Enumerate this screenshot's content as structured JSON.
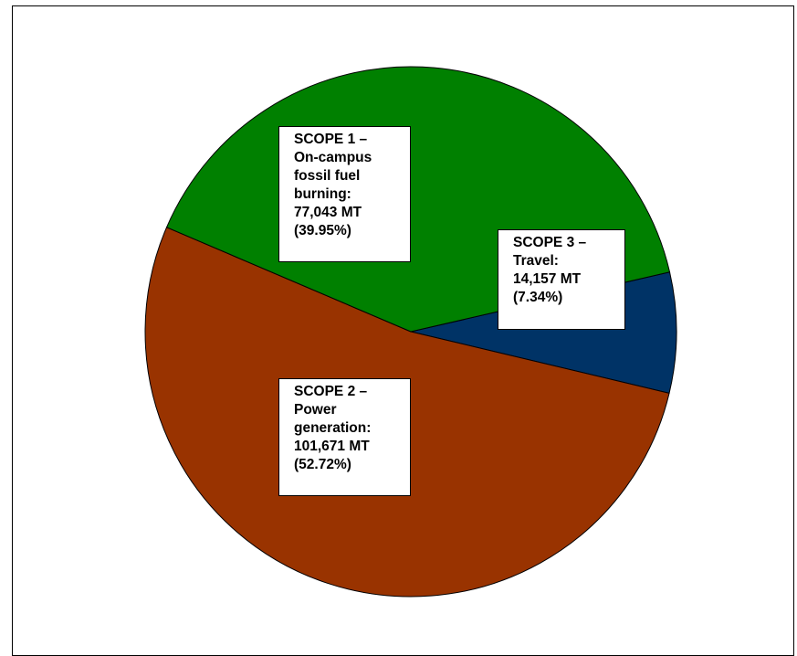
{
  "chart_data": {
    "type": "pie",
    "slices": [
      {
        "key": "scope3",
        "value": 14157,
        "percent": 7.34,
        "color": "#003366",
        "label_lines": [
          "SCOPE 3 –",
          "Travel:",
          "14,157 MT",
          "(7.34%)"
        ]
      },
      {
        "key": "scope2",
        "value": 101671,
        "percent": 52.72,
        "color": "#993300",
        "label_lines": [
          "SCOPE 2 –",
          "Power",
          "generation:",
          "101,671 MT",
          "(52.72%)"
        ]
      },
      {
        "key": "scope1",
        "value": 77043,
        "percent": 39.95,
        "color": "#008000",
        "label_lines": [
          "SCOPE 1 –",
          "On-campus",
          "fossil fuel",
          "burning:",
          "77,043 MT",
          "(39.95%)"
        ]
      }
    ]
  }
}
